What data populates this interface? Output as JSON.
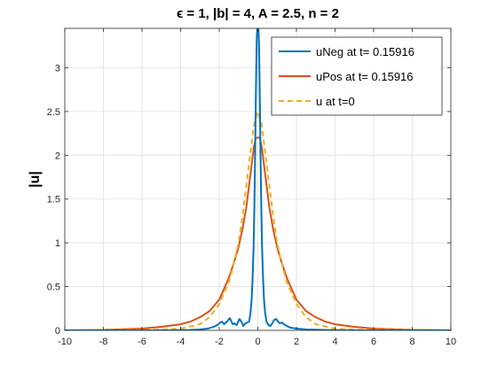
{
  "chart_data": {
    "type": "line",
    "title": "ϵ = 1, |b| = 4, A = 2.5, n = 2",
    "xlabel": "",
    "ylabel": "|u|",
    "xlim": [
      -10,
      10
    ],
    "ylim": [
      0,
      3.45
    ],
    "x_ticks": [
      -10,
      -8,
      -6,
      -4,
      -2,
      0,
      2,
      4,
      6,
      8,
      10
    ],
    "y_ticks": [
      0,
      0.5,
      1,
      1.5,
      2,
      2.5,
      3
    ],
    "grid": true,
    "legend_position": "top-right",
    "series": [
      {
        "name": "uNeg at t= 0.15916",
        "color": "#0072BD",
        "style": "solid",
        "points": [
          [
            -10,
            0
          ],
          [
            -5,
            0
          ],
          [
            -3.5,
            0.005
          ],
          [
            -3,
            0.01
          ],
          [
            -2.6,
            0.02
          ],
          [
            -2.3,
            0.04
          ],
          [
            -2.1,
            0.06
          ],
          [
            -1.95,
            0.09
          ],
          [
            -1.85,
            0.1
          ],
          [
            -1.75,
            0.07
          ],
          [
            -1.6,
            0.1
          ],
          [
            -1.45,
            0.14
          ],
          [
            -1.3,
            0.07
          ],
          [
            -1.2,
            0.08
          ],
          [
            -1.1,
            0.06
          ],
          [
            -0.95,
            0.13
          ],
          [
            -0.85,
            0.1
          ],
          [
            -0.75,
            0.05
          ],
          [
            -0.65,
            0.08
          ],
          [
            -0.55,
            0.09
          ],
          [
            -0.45,
            0.1
          ],
          [
            -0.38,
            0.2
          ],
          [
            -0.32,
            0.35
          ],
          [
            -0.27,
            0.6
          ],
          [
            -0.22,
            0.95
          ],
          [
            -0.18,
            1.4
          ],
          [
            -0.14,
            2.0
          ],
          [
            -0.1,
            2.7
          ],
          [
            -0.06,
            3.3
          ],
          [
            -0.03,
            3.45
          ],
          [
            0,
            3.45
          ],
          [
            0.03,
            3.45
          ],
          [
            0.06,
            3.3
          ],
          [
            0.1,
            2.7
          ],
          [
            0.14,
            2.0
          ],
          [
            0.18,
            1.4
          ],
          [
            0.22,
            0.95
          ],
          [
            0.27,
            0.6
          ],
          [
            0.32,
            0.35
          ],
          [
            0.38,
            0.2
          ],
          [
            0.45,
            0.1
          ],
          [
            0.55,
            0.06
          ],
          [
            0.65,
            0.05
          ],
          [
            0.75,
            0.08
          ],
          [
            0.85,
            0.12
          ],
          [
            0.95,
            0.13
          ],
          [
            1.05,
            0.1
          ],
          [
            1.15,
            0.08
          ],
          [
            1.25,
            0.09
          ],
          [
            1.35,
            0.07
          ],
          [
            1.5,
            0.05
          ],
          [
            1.7,
            0.03
          ],
          [
            2.0,
            0.02
          ],
          [
            2.5,
            0.01
          ],
          [
            3.5,
            0.005
          ],
          [
            5,
            0
          ],
          [
            10,
            0
          ]
        ]
      },
      {
        "name": "uPos at t= 0.15916",
        "color": "#D95319",
        "style": "solid",
        "points": [
          [
            -10,
            0
          ],
          [
            -8,
            0.005
          ],
          [
            -6,
            0.02
          ],
          [
            -5,
            0.04
          ],
          [
            -4,
            0.07
          ],
          [
            -3.5,
            0.1
          ],
          [
            -3,
            0.15
          ],
          [
            -2.5,
            0.22
          ],
          [
            -2,
            0.35
          ],
          [
            -1.5,
            0.6
          ],
          [
            -1.2,
            0.8
          ],
          [
            -1,
            0.95
          ],
          [
            -0.8,
            1.15
          ],
          [
            -0.6,
            1.4
          ],
          [
            -0.4,
            1.75
          ],
          [
            -0.2,
            2.1
          ],
          [
            -0.1,
            2.2
          ],
          [
            0,
            2.2
          ],
          [
            0.1,
            2.2
          ],
          [
            0.2,
            2.1
          ],
          [
            0.4,
            1.75
          ],
          [
            0.6,
            1.4
          ],
          [
            0.8,
            1.15
          ],
          [
            1,
            0.95
          ],
          [
            1.2,
            0.8
          ],
          [
            1.5,
            0.6
          ],
          [
            2,
            0.35
          ],
          [
            2.5,
            0.22
          ],
          [
            3,
            0.15
          ],
          [
            3.5,
            0.1
          ],
          [
            4,
            0.07
          ],
          [
            5,
            0.04
          ],
          [
            6,
            0.02
          ],
          [
            8,
            0.005
          ],
          [
            10,
            0
          ]
        ]
      },
      {
        "name": "u at t=0",
        "color": "#EDB120",
        "style": "dashed",
        "points": [
          [
            -10,
            0
          ],
          [
            -6,
            0.005
          ],
          [
            -5,
            0.01
          ],
          [
            -4,
            0.02
          ],
          [
            -3,
            0.07
          ],
          [
            -2.5,
            0.15
          ],
          [
            -2,
            0.3
          ],
          [
            -1.5,
            0.55
          ],
          [
            -1.2,
            0.8
          ],
          [
            -1,
            1.0
          ],
          [
            -0.8,
            1.3
          ],
          [
            -0.6,
            1.65
          ],
          [
            -0.4,
            2.0
          ],
          [
            -0.2,
            2.35
          ],
          [
            0,
            2.5
          ],
          [
            0.2,
            2.35
          ],
          [
            0.4,
            2.0
          ],
          [
            0.6,
            1.65
          ],
          [
            0.8,
            1.3
          ],
          [
            1,
            1.0
          ],
          [
            1.2,
            0.8
          ],
          [
            1.5,
            0.55
          ],
          [
            2,
            0.3
          ],
          [
            2.5,
            0.15
          ],
          [
            3,
            0.07
          ],
          [
            4,
            0.02
          ],
          [
            5,
            0.01
          ],
          [
            6,
            0.005
          ],
          [
            10,
            0
          ]
        ]
      }
    ]
  }
}
